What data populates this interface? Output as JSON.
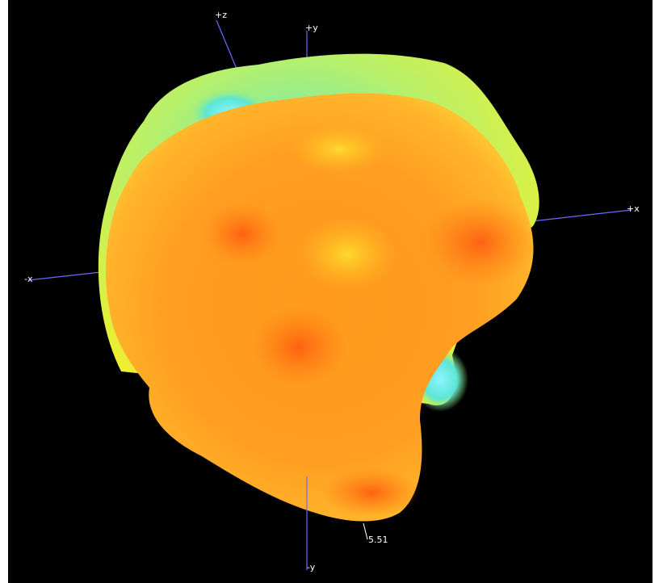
{
  "axes": {
    "plus_z": "+z",
    "plus_y": "+y",
    "plus_x": "+x",
    "minus_x": "-x",
    "minus_y": "-y"
  },
  "marker_value": "5.51"
}
